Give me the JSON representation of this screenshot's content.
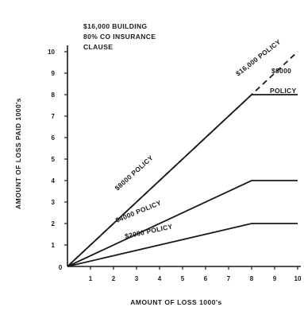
{
  "chart_data": {
    "type": "line",
    "note": [
      "$16,000 BUILDING",
      "80% CO INSURANCE",
      "CLAUSE"
    ],
    "xlabel": "AMOUNT OF LOSS 1000's",
    "ylabel": "AMOUNT OF LOSS PAID 1000's",
    "xlim": [
      0,
      10
    ],
    "ylim": [
      0,
      10
    ],
    "x_ticks": [
      "1",
      "2",
      "3",
      "4",
      "5",
      "6",
      "7",
      "8",
      "9",
      "10"
    ],
    "y_ticks": [
      "1",
      "2",
      "3",
      "4",
      "5",
      "6",
      "7",
      "8",
      "9",
      "10"
    ],
    "origin_label": "0",
    "grid": false,
    "series": [
      {
        "name": "$16,000 POLICY",
        "style": "dashed",
        "x": [
          0,
          10
        ],
        "y": [
          0,
          10
        ]
      },
      {
        "name": "$8000 POLICY",
        "style": "solid",
        "x": [
          0,
          8,
          10
        ],
        "y": [
          0,
          8,
          8
        ]
      },
      {
        "name": "$4000 POLICY",
        "style": "solid",
        "x": [
          0,
          8,
          10
        ],
        "y": [
          0,
          4,
          4
        ]
      },
      {
        "name": "$2000 POLICY",
        "style": "solid",
        "x": [
          0,
          8,
          10
        ],
        "y": [
          0,
          2,
          2
        ]
      }
    ],
    "annotations": [
      {
        "text": "$16,000 POLICY",
        "series": 0
      },
      {
        "text": "$8000 POLICY",
        "series": 1
      },
      {
        "text": "$8000",
        "series": 1
      },
      {
        "text": "POLICY",
        "series": 1
      },
      {
        "text": "$4000 POLICY",
        "series": 2
      },
      {
        "text": "$2000 POLICY",
        "series": 3
      }
    ]
  }
}
